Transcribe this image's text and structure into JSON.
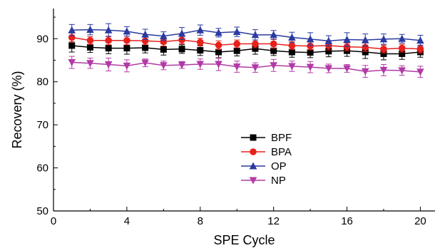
{
  "chart_data": {
    "type": "line",
    "title": "",
    "xlabel": "SPE Cycle",
    "ylabel": "Recovery (%)",
    "xlim": [
      0,
      20.8
    ],
    "ylim": [
      50,
      97
    ],
    "xticks": [
      0,
      4,
      8,
      12,
      16,
      20
    ],
    "yticks": [
      50,
      60,
      70,
      80,
      90
    ],
    "grid": false,
    "legend_position": "center",
    "x": [
      1,
      2,
      3,
      4,
      5,
      6,
      7,
      8,
      9,
      10,
      11,
      12,
      13,
      14,
      15,
      16,
      17,
      18,
      19,
      20
    ],
    "series": [
      {
        "name": "BPF",
        "color": "#000000",
        "marker": "square",
        "values": [
          88.4,
          88.0,
          87.8,
          87.8,
          87.9,
          87.5,
          87.6,
          87.3,
          86.9,
          87.2,
          87.7,
          87.2,
          86.9,
          86.8,
          87.1,
          87.2,
          86.9,
          86.5,
          86.5,
          86.9
        ],
        "errors": [
          1.5,
          1.2,
          1.3,
          1.4,
          1.2,
          1.3,
          1.0,
          1.2,
          1.4,
          1.2,
          1.3,
          1.1,
          1.2,
          1.2,
          1.3,
          1.3,
          1.5,
          1.4,
          1.3,
          1.2
        ]
      },
      {
        "name": "BPA",
        "color": "#e8201b",
        "marker": "circle",
        "values": [
          90.3,
          89.6,
          89.6,
          89.6,
          89.5,
          89.3,
          89.7,
          89.2,
          88.5,
          88.8,
          88.8,
          88.8,
          88.4,
          88.3,
          88.4,
          88.1,
          88.0,
          87.6,
          87.8,
          87.6
        ],
        "errors": [
          1.0,
          0.9,
          1.0,
          1.0,
          0.9,
          1.0,
          0.9,
          0.9,
          1.0,
          0.9,
          0.9,
          1.0,
          0.9,
          0.9,
          1.0,
          0.9,
          1.0,
          0.9,
          0.9,
          0.9
        ]
      },
      {
        "name": "OP",
        "color": "#2a3aa0",
        "marker": "triangle-up",
        "values": [
          92.0,
          92.1,
          92.0,
          91.7,
          91.0,
          90.6,
          91.2,
          92.0,
          91.4,
          91.6,
          90.9,
          90.9,
          90.3,
          89.9,
          89.5,
          89.8,
          89.7,
          89.9,
          90.0,
          89.6
        ],
        "errors": [
          1.3,
          1.2,
          1.5,
          1.1,
          1.2,
          1.0,
          1.4,
          1.2,
          1.0,
          1.1,
          1.2,
          1.0,
          1.2,
          1.5,
          1.2,
          1.6,
          1.4,
          1.2,
          1.0,
          1.2
        ]
      },
      {
        "name": "NP",
        "color": "#b23aa6",
        "marker": "triangle-down",
        "values": [
          84.5,
          84.3,
          84.0,
          83.7,
          84.4,
          83.8,
          83.9,
          84.1,
          84.1,
          83.5,
          83.3,
          83.8,
          83.6,
          83.4,
          83.1,
          83.1,
          82.4,
          82.7,
          82.6,
          82.3
        ],
        "errors": [
          1.4,
          1.2,
          1.5,
          1.4,
          0.9,
          1.0,
          0.8,
          1.2,
          1.5,
          1.3,
          1.1,
          1.4,
          1.2,
          1.3,
          1.0,
          0.9,
          1.4,
          1.3,
          1.1,
          1.3
        ]
      }
    ]
  }
}
